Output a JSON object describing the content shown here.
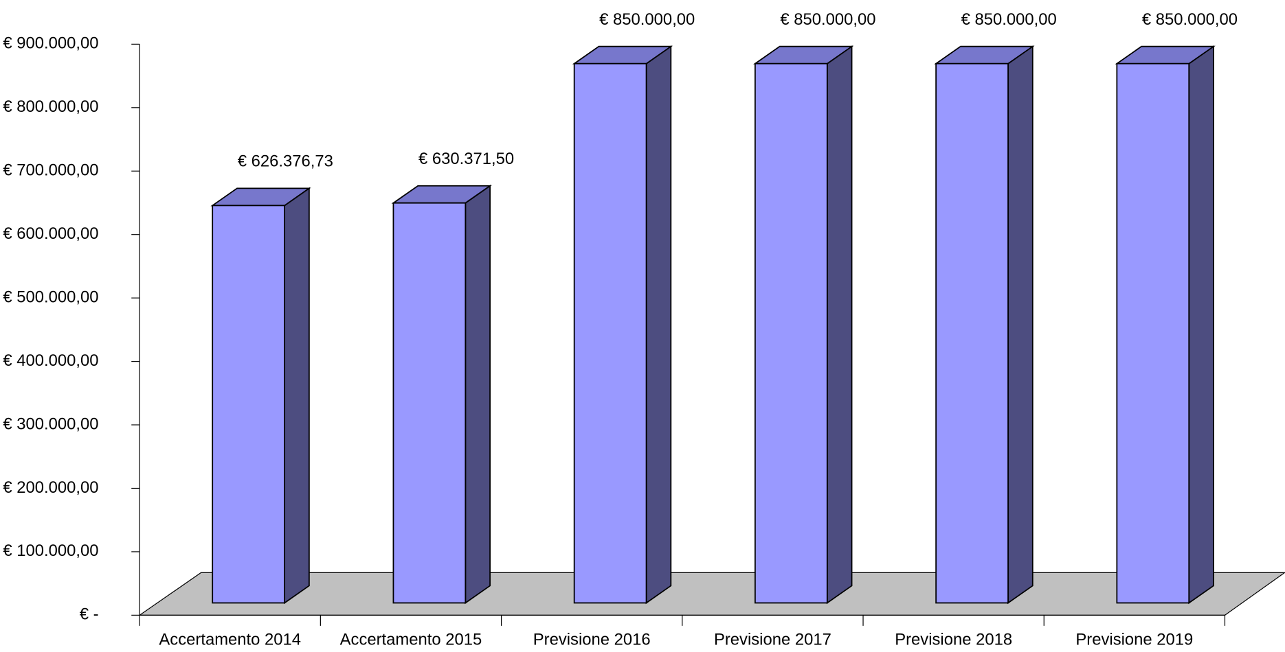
{
  "chart_data": {
    "type": "bar3d",
    "categories": [
      "Accertamento 2014",
      "Accertamento 2015",
      "Previsione 2016",
      "Previsione 2017",
      "Previsione 2018",
      "Previsione 2019"
    ],
    "values": [
      626376.73,
      630371.5,
      850000,
      850000,
      850000,
      850000
    ],
    "value_labels": [
      "€ 626.376,73",
      "€ 630.371,50",
      "€ 850.000,00",
      "€ 850.000,00",
      "€ 850.000,00",
      "€ 850.000,00"
    ],
    "color": "#9999ff",
    "ylim": [
      0,
      900000
    ],
    "yticks": [
      {
        "value": 0,
        "label": "€ -"
      },
      {
        "value": 100000,
        "label": "€ 100.000,00"
      },
      {
        "value": 200000,
        "label": "€ 200.000,00"
      },
      {
        "value": 300000,
        "label": "€ 300.000,00"
      },
      {
        "value": 400000,
        "label": "€ 400.000,00"
      },
      {
        "value": 500000,
        "label": "€ 500.000,00"
      },
      {
        "value": 600000,
        "label": "€ 600.000,00"
      },
      {
        "value": 700000,
        "label": "€ 700.000,00"
      },
      {
        "value": 800000,
        "label": "€ 800.000,00"
      },
      {
        "value": 900000,
        "label": "€ 900.000,00"
      }
    ]
  }
}
